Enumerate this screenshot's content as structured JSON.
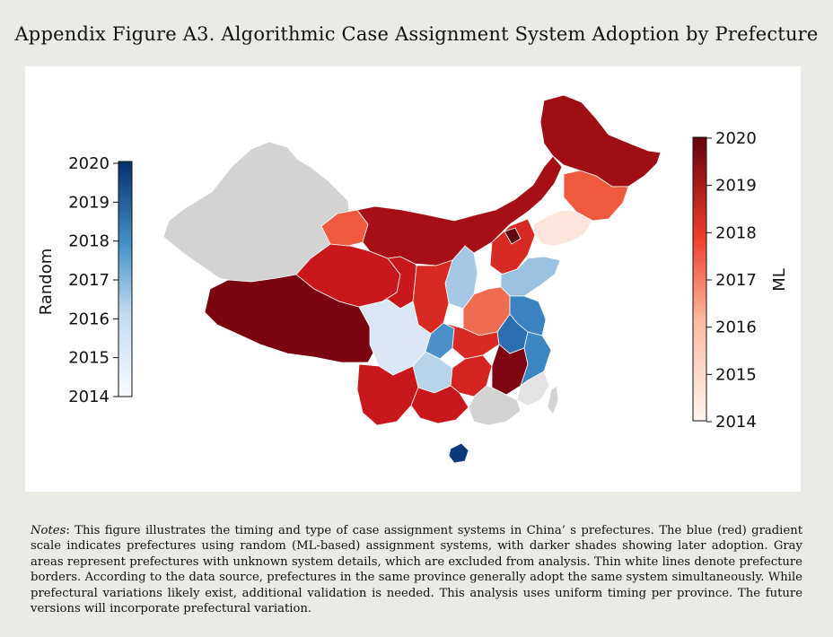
{
  "title": "Appendix Figure A3. Algorithmic Case Assignment System Adoption by Prefecture",
  "legend_random": {
    "label": "Random",
    "ticks": [
      "2020",
      "2019",
      "2018",
      "2017",
      "2016",
      "2015",
      "2014"
    ],
    "color_low": "#f7fbff",
    "color_high": "#08306b"
  },
  "legend_ml": {
    "label": "ML",
    "ticks": [
      "2020",
      "2019",
      "2018",
      "2017",
      "2016",
      "2015",
      "2014"
    ],
    "color_low": "#fff5f0",
    "color_high": "#67000d"
  },
  "colors": {
    "unknown": "#d3d3d3",
    "border": "#ffffff",
    "background": "#e9ebe5"
  },
  "notes": {
    "label": "Notes",
    "text": ": This figure illustrates the timing and type of case assignment systems in China’ s prefectures. The blue (red) gradient scale indicates prefectures using random (ML-based) assignment systems, with darker shades showing later adoption. Gray areas represent prefectures with unknown system details, which are excluded from analysis. Thin white lines denote prefecture borders. According to the data source, prefectures in the same province generally adopt the same system simultaneously. While prefectural variations likely exist, additional validation is needed. This analysis uses uniform timing per province. The future versions will incorporate prefectural variation."
  }
}
